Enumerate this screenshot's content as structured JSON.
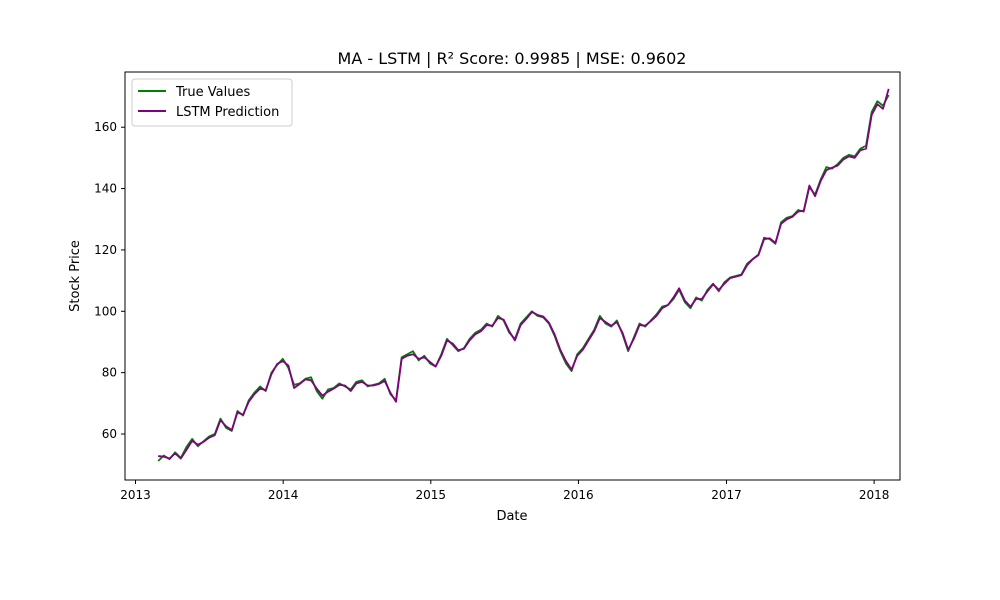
{
  "chart_data": {
    "type": "line",
    "title": "MA - LSTM | R² Score: 0.9985 | MSE: 0.9602",
    "xlabel": "Date",
    "ylabel": "Stock Price",
    "xlim": [
      "2012-12-06",
      "2018-03-06"
    ],
    "ylim": [
      45,
      178
    ],
    "x_ticks": [
      {
        "value": "2013-01-01",
        "label": "2013"
      },
      {
        "value": "2014-01-01",
        "label": "2014"
      },
      {
        "value": "2015-01-01",
        "label": "2015"
      },
      {
        "value": "2016-01-01",
        "label": "2016"
      },
      {
        "value": "2017-01-01",
        "label": "2017"
      },
      {
        "value": "2018-01-01",
        "label": "2018"
      }
    ],
    "y_ticks": [
      60,
      80,
      100,
      120,
      140,
      160
    ],
    "grid": false,
    "legend_position": "top-left",
    "x": [
      "2013-02-26",
      "2013-03-12",
      "2013-03-26",
      "2013-04-09",
      "2013-04-23",
      "2013-05-07",
      "2013-05-21",
      "2013-06-04",
      "2013-06-18",
      "2013-07-02",
      "2013-07-16",
      "2013-07-30",
      "2013-08-13",
      "2013-08-27",
      "2013-09-10",
      "2013-09-24",
      "2013-10-08",
      "2013-10-22",
      "2013-11-05",
      "2013-11-19",
      "2013-12-03",
      "2013-12-17",
      "2013-12-31",
      "2014-01-14",
      "2014-01-28",
      "2014-02-11",
      "2014-02-25",
      "2014-03-11",
      "2014-03-25",
      "2014-04-08",
      "2014-04-22",
      "2014-05-06",
      "2014-05-20",
      "2014-06-03",
      "2014-06-17",
      "2014-07-01",
      "2014-07-15",
      "2014-07-29",
      "2014-08-12",
      "2014-08-26",
      "2014-09-09",
      "2014-09-23",
      "2014-10-07",
      "2014-10-21",
      "2014-11-04",
      "2014-11-18",
      "2014-12-02",
      "2014-12-16",
      "2014-12-30",
      "2015-01-13",
      "2015-01-27",
      "2015-02-10",
      "2015-02-24",
      "2015-03-10",
      "2015-03-24",
      "2015-04-07",
      "2015-04-21",
      "2015-05-05",
      "2015-05-19",
      "2015-06-02",
      "2015-06-16",
      "2015-06-30",
      "2015-07-14",
      "2015-07-28",
      "2015-08-11",
      "2015-08-25",
      "2015-09-08",
      "2015-09-22",
      "2015-10-06",
      "2015-10-20",
      "2015-11-03",
      "2015-11-17",
      "2015-12-01",
      "2015-12-15",
      "2015-12-29",
      "2016-01-12",
      "2016-01-26",
      "2016-02-09",
      "2016-02-23",
      "2016-03-08",
      "2016-03-22",
      "2016-04-05",
      "2016-04-19",
      "2016-05-03",
      "2016-05-17",
      "2016-05-31",
      "2016-06-14",
      "2016-06-28",
      "2016-07-12",
      "2016-07-26",
      "2016-08-09",
      "2016-08-23",
      "2016-09-06",
      "2016-09-20",
      "2016-10-04",
      "2016-10-18",
      "2016-11-01",
      "2016-11-15",
      "2016-11-29",
      "2016-12-13",
      "2016-12-27",
      "2017-01-10",
      "2017-01-24",
      "2017-02-07",
      "2017-02-21",
      "2017-03-07",
      "2017-03-21",
      "2017-04-04",
      "2017-04-18",
      "2017-05-02",
      "2017-05-16",
      "2017-05-30",
      "2017-06-13",
      "2017-06-27",
      "2017-07-11",
      "2017-07-25",
      "2017-08-08",
      "2017-08-22",
      "2017-09-05",
      "2017-09-19",
      "2017-10-03",
      "2017-10-17",
      "2017-10-31",
      "2017-11-14",
      "2017-11-28",
      "2017-12-12",
      "2017-12-26",
      "2018-01-09",
      "2018-01-23",
      "2018-02-06"
    ],
    "series": [
      {
        "name": "True Values",
        "color": "#008000",
        "values": [
          51.2,
          53.0,
          51.8,
          54.0,
          52.2,
          55.8,
          58.4,
          56.0,
          57.6,
          59.2,
          60.0,
          65.0,
          62.0,
          61.0,
          67.5,
          66.0,
          71.0,
          73.5,
          75.5,
          74.0,
          80.0,
          82.5,
          84.5,
          81.5,
          76.0,
          76.5,
          78.0,
          78.5,
          74.0,
          71.5,
          74.5,
          75.0,
          76.5,
          75.5,
          74.5,
          77.0,
          77.5,
          75.5,
          76.0,
          76.5,
          78.0,
          73.0,
          71.0,
          85.0,
          86.0,
          87.0,
          84.0,
          85.5,
          83.0,
          82.0,
          86.0,
          91.0,
          89.0,
          87.0,
          88.0,
          91.0,
          93.0,
          94.0,
          96.0,
          95.0,
          98.5,
          97.0,
          93.0,
          91.0,
          96.0,
          98.0,
          100.0,
          98.5,
          98.0,
          96.0,
          92.0,
          87.0,
          83.0,
          80.5,
          86.0,
          88.0,
          91.0,
          94.0,
          98.5,
          96.0,
          95.0,
          97.0,
          92.5,
          87.0,
          91.5,
          96.0,
          95.0,
          97.0,
          99.0,
          101.5,
          102.0,
          104.0,
          107.0,
          103.0,
          101.0,
          104.5,
          103.5,
          107.0,
          109.0,
          106.5,
          109.5,
          111.0,
          111.5,
          112.0,
          115.5,
          117.0,
          118.5,
          124.0,
          123.5,
          122.0,
          129.0,
          130.5,
          131.0,
          133.0,
          132.5,
          140.5,
          138.0,
          143.0,
          147.0,
          146.5,
          148.0,
          150.0,
          151.0,
          150.5,
          153.0,
          154.0,
          165.0,
          168.5,
          167.0,
          170.5
        ]
      },
      {
        "name": "LSTM Prediction",
        "color": "#800080",
        "values": [
          52.8,
          52.6,
          52.0,
          53.7,
          52.0,
          54.8,
          57.8,
          56.5,
          57.4,
          58.8,
          59.6,
          64.5,
          62.5,
          61.3,
          67.0,
          66.3,
          70.5,
          73.0,
          74.8,
          74.3,
          79.5,
          82.8,
          83.8,
          82.3,
          75.0,
          76.3,
          77.8,
          77.5,
          74.8,
          72.5,
          73.8,
          74.8,
          76.0,
          75.8,
          74.0,
          76.5,
          77.0,
          75.8,
          75.8,
          76.3,
          77.3,
          73.5,
          70.5,
          84.5,
          85.5,
          86.0,
          84.5,
          85.0,
          83.5,
          82.0,
          85.5,
          90.5,
          89.5,
          87.3,
          87.8,
          90.5,
          92.5,
          93.5,
          95.5,
          95.3,
          97.8,
          97.3,
          93.5,
          90.5,
          95.5,
          97.5,
          99.8,
          98.8,
          98.3,
          96.3,
          92.5,
          87.5,
          83.8,
          81.0,
          85.5,
          87.5,
          90.5,
          93.5,
          97.8,
          96.5,
          95.3,
          96.5,
          93.0,
          87.5,
          91.0,
          95.5,
          95.3,
          96.8,
          98.5,
          101.0,
          102.0,
          104.5,
          107.5,
          103.5,
          101.5,
          104.0,
          104.0,
          106.5,
          108.8,
          107.0,
          109.0,
          110.8,
          111.3,
          111.8,
          115.0,
          117.0,
          118.3,
          123.5,
          123.8,
          122.3,
          128.5,
          130.0,
          130.8,
          132.5,
          132.8,
          141.0,
          137.5,
          142.5,
          146.0,
          146.8,
          147.5,
          149.5,
          150.5,
          150.0,
          152.5,
          153.0,
          164.0,
          167.5,
          166.0,
          172.5
        ]
      }
    ]
  }
}
